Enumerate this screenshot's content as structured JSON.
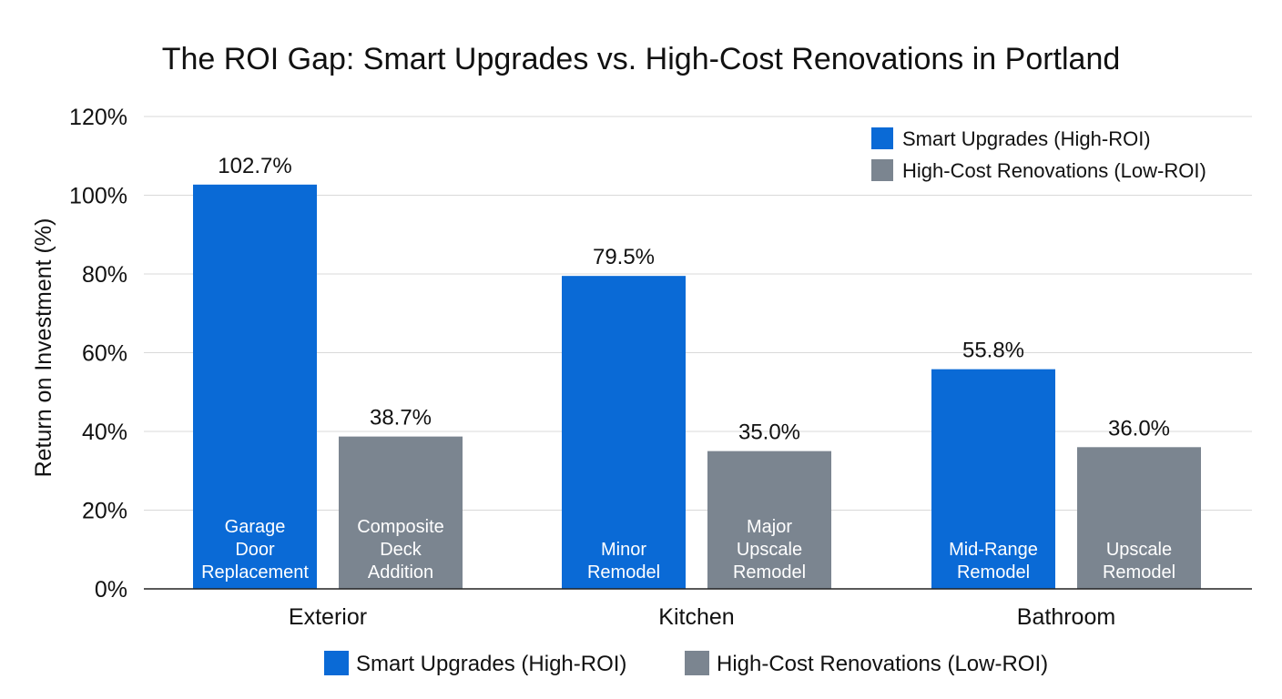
{
  "chart_data": {
    "type": "bar",
    "title": "The ROI Gap: Smart Upgrades vs. High-Cost Renovations in Portland",
    "xlabel": "",
    "ylabel": "Return on Investment (%)",
    "ylim": [
      0,
      120
    ],
    "yticks": [
      "0%",
      "20%",
      "40%",
      "60%",
      "80%",
      "100%",
      "120%"
    ],
    "grid": true,
    "legend_top": "top-right",
    "legend_bottom": "bottom",
    "categories": [
      "Exterior",
      "Kitchen",
      "Bathroom"
    ],
    "series": [
      {
        "name": "Smart Upgrades (High-ROI)",
        "color": "#0a6ad6",
        "values": [
          102.7,
          79.5,
          55.8
        ],
        "value_labels": [
          "102.7%",
          "79.5%",
          "55.8%"
        ],
        "bar_labels": [
          [
            "Garage",
            "Door",
            "Replacement"
          ],
          [
            "Minor",
            "Remodel"
          ],
          [
            "Mid-Range",
            "Remodel"
          ]
        ]
      },
      {
        "name": "High-Cost Renovations (Low-ROI)",
        "color": "#7b8590",
        "values": [
          38.7,
          35.0,
          36.0
        ],
        "value_labels": [
          "38.7%",
          "35.0%",
          "36.0%"
        ],
        "bar_labels": [
          [
            "Composite",
            "Deck",
            "Addition"
          ],
          [
            "Major",
            "Upscale",
            "Remodel"
          ],
          [
            "Upscale",
            "Remodel"
          ]
        ]
      }
    ]
  }
}
